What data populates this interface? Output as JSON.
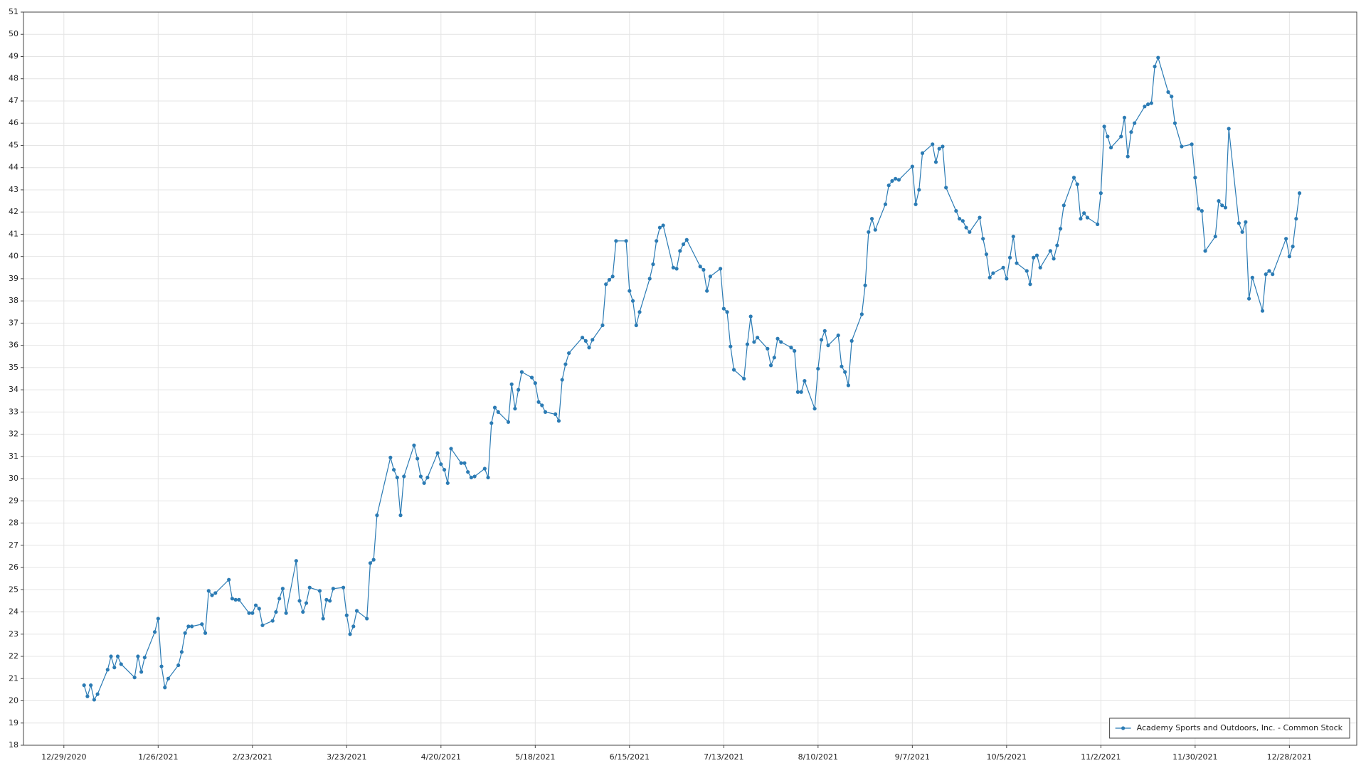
{
  "chart_data": {
    "type": "line",
    "x": [
      "1/4/2021",
      "1/5/2021",
      "1/6/2021",
      "1/7/2021",
      "1/8/2021",
      "1/11/2021",
      "1/12/2021",
      "1/13/2021",
      "1/14/2021",
      "1/15/2021",
      "1/19/2021",
      "1/20/2021",
      "1/21/2021",
      "1/22/2021",
      "1/25/2021",
      "1/26/2021",
      "1/27/2021",
      "1/28/2021",
      "1/29/2021",
      "2/1/2021",
      "2/2/2021",
      "2/3/2021",
      "2/4/2021",
      "2/5/2021",
      "2/8/2021",
      "2/9/2021",
      "2/10/2021",
      "2/11/2021",
      "2/12/2021",
      "2/16/2021",
      "2/17/2021",
      "2/18/2021",
      "2/19/2021",
      "2/22/2021",
      "2/23/2021",
      "2/24/2021",
      "2/25/2021",
      "2/26/2021",
      "3/1/2021",
      "3/2/2021",
      "3/3/2021",
      "3/4/2021",
      "3/5/2021",
      "3/8/2021",
      "3/9/2021",
      "3/10/2021",
      "3/11/2021",
      "3/12/2021",
      "3/15/2021",
      "3/16/2021",
      "3/17/2021",
      "3/18/2021",
      "3/19/2021",
      "3/22/2021",
      "3/23/2021",
      "3/24/2021",
      "3/25/2021",
      "3/26/2021",
      "3/29/2021",
      "3/30/2021",
      "3/31/2021",
      "4/1/2021",
      "4/5/2021",
      "4/6/2021",
      "4/7/2021",
      "4/8/2021",
      "4/9/2021",
      "4/12/2021",
      "4/13/2021",
      "4/14/2021",
      "4/15/2021",
      "4/16/2021",
      "4/19/2021",
      "4/20/2021",
      "4/21/2021",
      "4/22/2021",
      "4/23/2021",
      "4/26/2021",
      "4/27/2021",
      "4/28/2021",
      "4/29/2021",
      "4/30/2021",
      "5/3/2021",
      "5/4/2021",
      "5/5/2021",
      "5/6/2021",
      "5/7/2021",
      "5/10/2021",
      "5/11/2021",
      "5/12/2021",
      "5/13/2021",
      "5/14/2021",
      "5/17/2021",
      "5/18/2021",
      "5/19/2021",
      "5/20/2021",
      "5/21/2021",
      "5/24/2021",
      "5/25/2021",
      "5/26/2021",
      "5/27/2021",
      "5/28/2021",
      "6/1/2021",
      "6/2/2021",
      "6/3/2021",
      "6/4/2021",
      "6/7/2021",
      "6/8/2021",
      "6/9/2021",
      "6/10/2021",
      "6/11/2021",
      "6/14/2021",
      "6/15/2021",
      "6/16/2021",
      "6/17/2021",
      "6/18/2021",
      "6/21/2021",
      "6/22/2021",
      "6/23/2021",
      "6/24/2021",
      "6/25/2021",
      "6/28/2021",
      "6/29/2021",
      "6/30/2021",
      "7/1/2021",
      "7/2/2021",
      "7/6/2021",
      "7/7/2021",
      "7/8/2021",
      "7/9/2021",
      "7/12/2021",
      "7/13/2021",
      "7/14/2021",
      "7/15/2021",
      "7/16/2021",
      "7/19/2021",
      "7/20/2021",
      "7/21/2021",
      "7/22/2021",
      "7/23/2021",
      "7/26/2021",
      "7/27/2021",
      "7/28/2021",
      "7/29/2021",
      "7/30/2021",
      "8/2/2021",
      "8/3/2021",
      "8/4/2021",
      "8/5/2021",
      "8/6/2021",
      "8/9/2021",
      "8/10/2021",
      "8/11/2021",
      "8/12/2021",
      "8/13/2021",
      "8/16/2021",
      "8/17/2021",
      "8/18/2021",
      "8/19/2021",
      "8/20/2021",
      "8/23/2021",
      "8/24/2021",
      "8/25/2021",
      "8/26/2021",
      "8/27/2021",
      "8/30/2021",
      "8/31/2021",
      "9/1/2021",
      "9/2/2021",
      "9/3/2021",
      "9/7/2021",
      "9/8/2021",
      "9/9/2021",
      "9/10/2021",
      "9/13/2021",
      "9/14/2021",
      "9/15/2021",
      "9/16/2021",
      "9/17/2021",
      "9/20/2021",
      "9/21/2021",
      "9/22/2021",
      "9/23/2021",
      "9/24/2021",
      "9/27/2021",
      "9/28/2021",
      "9/29/2021",
      "9/30/2021",
      "10/1/2021",
      "10/4/2021",
      "10/5/2021",
      "10/6/2021",
      "10/7/2021",
      "10/8/2021",
      "10/11/2021",
      "10/12/2021",
      "10/13/2021",
      "10/14/2021",
      "10/15/2021",
      "10/18/2021",
      "10/19/2021",
      "10/20/2021",
      "10/21/2021",
      "10/22/2021",
      "10/25/2021",
      "10/26/2021",
      "10/27/2021",
      "10/28/2021",
      "10/29/2021",
      "11/1/2021",
      "11/2/2021",
      "11/3/2021",
      "11/4/2021",
      "11/5/2021",
      "11/8/2021",
      "11/9/2021",
      "11/10/2021",
      "11/11/2021",
      "11/12/2021",
      "11/15/2021",
      "11/16/2021",
      "11/17/2021",
      "11/18/2021",
      "11/19/2021",
      "11/22/2021",
      "11/23/2021",
      "11/24/2021",
      "11/26/2021",
      "11/29/2021",
      "11/30/2021",
      "12/1/2021",
      "12/2/2021",
      "12/3/2021",
      "12/6/2021",
      "12/7/2021",
      "12/8/2021",
      "12/9/2021",
      "12/10/2021",
      "12/13/2021",
      "12/14/2021",
      "12/15/2021",
      "12/16/2021",
      "12/17/2021",
      "12/20/2021",
      "12/21/2021",
      "12/22/2021",
      "12/23/2021",
      "12/27/2021",
      "12/28/2021",
      "12/29/2021",
      "12/30/2021",
      "12/31/2021"
    ],
    "series": [
      {
        "name": "Academy Sports and Outdoors, Inc. - Common Stock",
        "color": "#2b7bb4",
        "values": [
          20.7,
          20.2,
          20.7,
          20.05,
          20.3,
          21.4,
          22.0,
          21.5,
          22.0,
          21.65,
          21.05,
          22.0,
          21.3,
          21.95,
          23.1,
          23.7,
          21.55,
          20.6,
          21.0,
          21.6,
          22.2,
          23.05,
          23.35,
          23.35,
          23.45,
          23.05,
          24.95,
          24.75,
          24.85,
          25.45,
          24.6,
          24.55,
          24.55,
          23.95,
          23.95,
          24.3,
          24.15,
          23.4,
          23.6,
          24.0,
          24.6,
          25.05,
          23.95,
          26.3,
          24.5,
          24.0,
          24.4,
          25.1,
          24.95,
          23.7,
          24.55,
          24.5,
          25.05,
          25.1,
          23.85,
          23.0,
          23.35,
          24.05,
          23.7,
          26.2,
          26.35,
          28.35,
          30.95,
          30.4,
          30.05,
          28.35,
          30.1,
          31.5,
          30.9,
          30.1,
          29.8,
          30.05,
          31.15,
          30.65,
          30.4,
          29.8,
          31.35,
          30.7,
          30.7,
          30.3,
          30.05,
          30.1,
          30.45,
          30.05,
          32.5,
          33.2,
          33.0,
          32.55,
          34.25,
          33.15,
          34.0,
          34.8,
          34.55,
          34.3,
          33.45,
          33.3,
          33.0,
          32.9,
          32.6,
          34.45,
          35.15,
          35.65,
          36.35,
          36.2,
          35.9,
          36.25,
          36.9,
          38.75,
          38.95,
          39.1,
          40.7,
          40.7,
          38.45,
          38.0,
          36.9,
          37.5,
          39.0,
          39.65,
          40.7,
          41.3,
          41.4,
          39.5,
          39.45,
          40.25,
          40.55,
          40.75,
          39.55,
          39.4,
          38.45,
          39.1,
          39.45,
          37.65,
          37.5,
          35.95,
          34.9,
          34.5,
          36.05,
          37.3,
          36.15,
          36.35,
          35.85,
          35.1,
          35.45,
          36.3,
          36.15,
          35.9,
          35.75,
          33.9,
          33.9,
          34.4,
          33.15,
          34.95,
          36.25,
          36.65,
          36.0,
          36.45,
          35.05,
          34.8,
          34.2,
          36.2,
          37.4,
          38.7,
          41.1,
          41.7,
          41.2,
          42.35,
          43.2,
          43.4,
          43.5,
          43.45,
          44.05,
          42.35,
          43.0,
          44.65,
          45.05,
          44.25,
          44.85,
          44.95,
          43.1,
          42.05,
          41.7,
          41.6,
          41.3,
          41.1,
          41.75,
          40.8,
          40.1,
          39.05,
          39.25,
          39.5,
          39.0,
          39.95,
          40.9,
          39.7,
          39.35,
          38.75,
          39.95,
          40.05,
          39.5,
          40.25,
          39.9,
          40.5,
          41.25,
          42.3,
          43.55,
          43.25,
          41.7,
          41.95,
          41.75,
          41.45,
          42.85,
          45.85,
          45.4,
          44.9,
          45.4,
          46.25,
          44.5,
          45.6,
          46.0,
          46.75,
          46.85,
          46.9,
          48.55,
          48.95,
          47.4,
          47.2,
          46.0,
          44.95,
          45.05,
          43.55,
          42.15,
          42.05,
          40.25,
          40.9,
          42.5,
          42.3,
          42.2,
          45.75,
          41.5,
          41.1,
          41.55,
          38.1,
          39.05,
          37.55,
          39.2,
          39.35,
          39.2,
          40.8,
          40.0,
          40.45,
          41.7,
          42.85
        ]
      }
    ],
    "xlim": [
      "12/17/2020",
      "1/17/2022"
    ],
    "xticks": [
      "12/29/2020",
      "1/26/2021",
      "2/23/2021",
      "3/23/2021",
      "4/20/2021",
      "5/18/2021",
      "6/15/2021",
      "7/13/2021",
      "8/10/2021",
      "9/7/2021",
      "10/5/2021",
      "11/2/2021",
      "11/30/2021",
      "12/28/2021"
    ],
    "ylim": [
      18,
      51
    ],
    "yticks": [
      18,
      19,
      20,
      21,
      22,
      23,
      24,
      25,
      26,
      27,
      28,
      29,
      30,
      31,
      32,
      33,
      34,
      35,
      36,
      37,
      38,
      39,
      40,
      41,
      42,
      43,
      44,
      45,
      46,
      47,
      48,
      49,
      50,
      51
    ],
    "grid": true,
    "legend": "lower right"
  }
}
